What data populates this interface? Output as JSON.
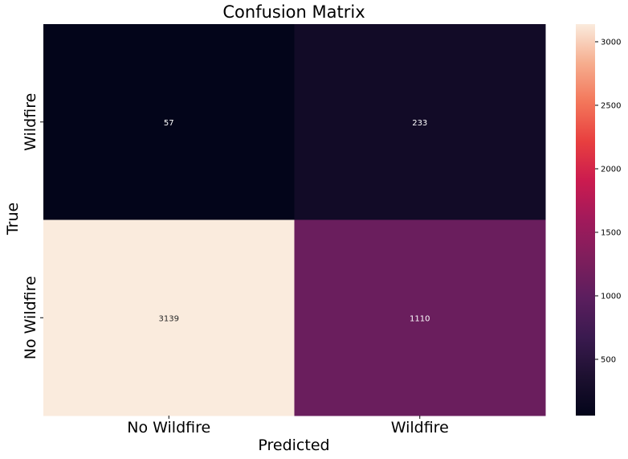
{
  "chart_data": {
    "type": "heatmap",
    "title": "Confusion Matrix",
    "xlabel": "Predicted",
    "ylabel": "True",
    "x_categories": [
      "No Wildfire",
      "Wildfire"
    ],
    "y_categories": [
      "Wildfire",
      "No Wildfire"
    ],
    "values": [
      [
        57,
        233
      ],
      [
        3139,
        1110
      ]
    ],
    "colorbar": {
      "min": 57,
      "max": 3139,
      "ticks": [
        500,
        1000,
        1500,
        2000,
        2500,
        3000
      ],
      "colormap": "rocket"
    },
    "grid": false
  }
}
